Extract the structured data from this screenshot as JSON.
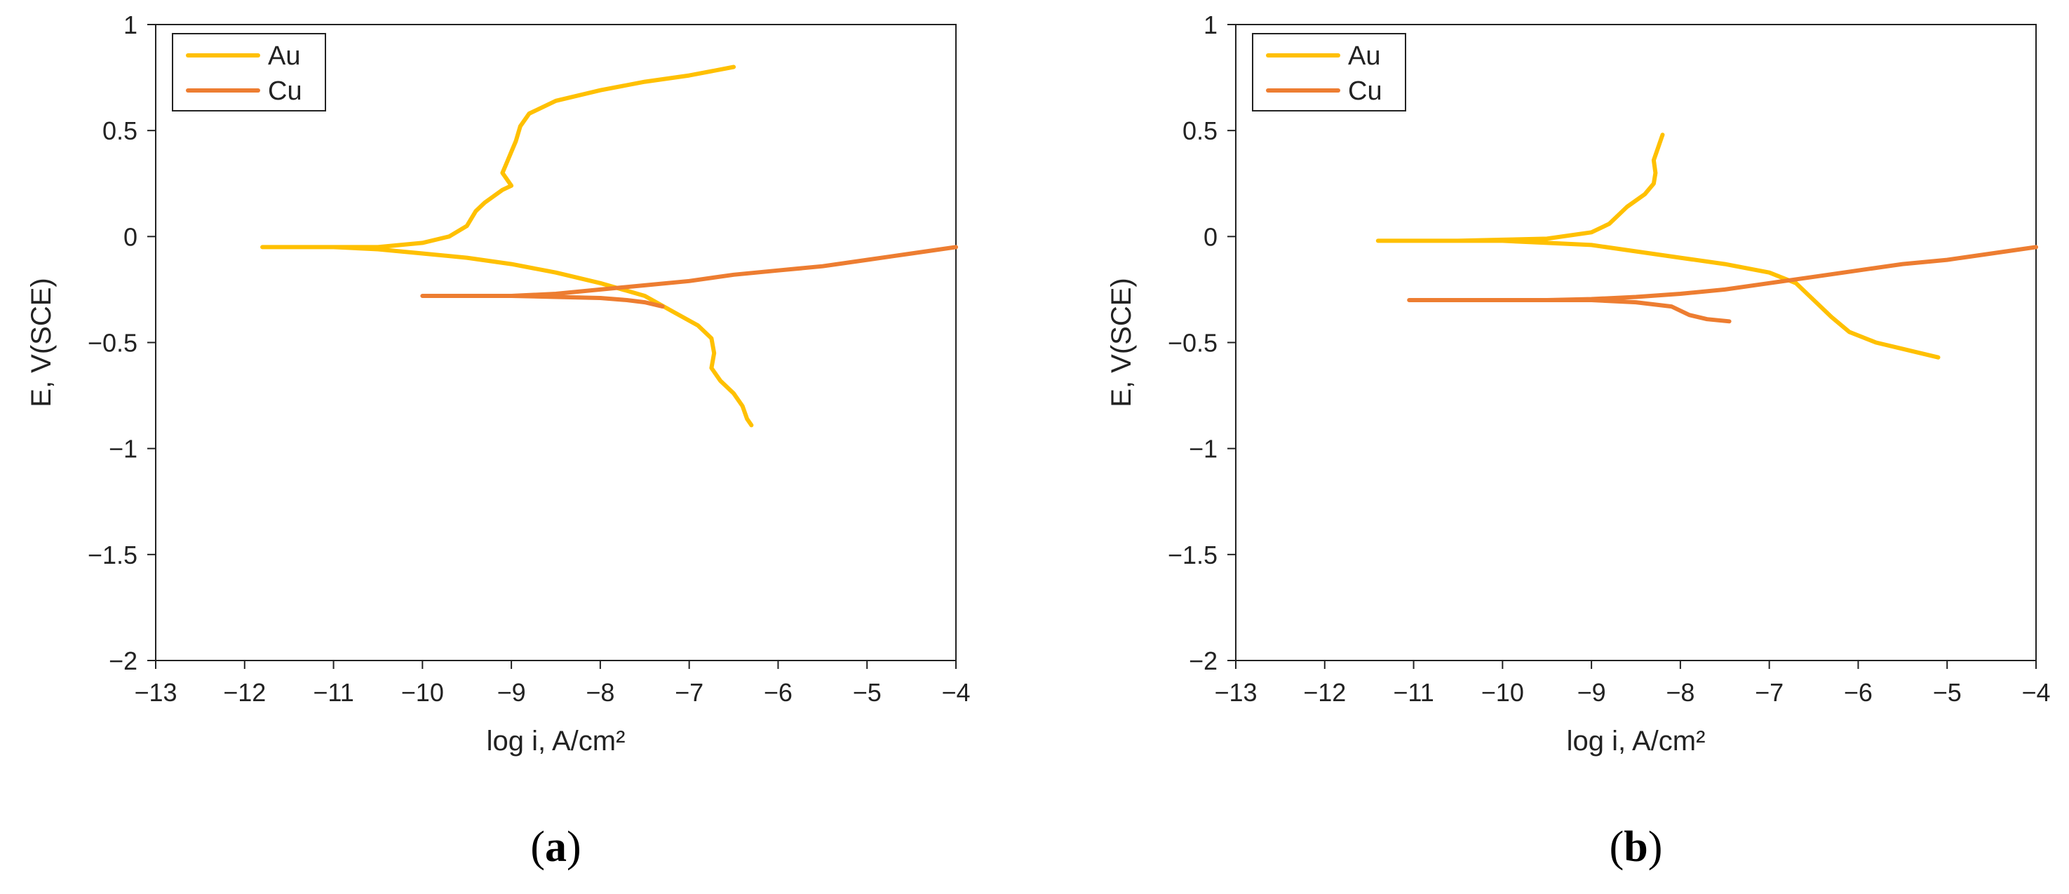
{
  "chart_data": [
    {
      "type": "line",
      "panel_label": {
        "open": "(",
        "letter": "a",
        "close": ")"
      },
      "xlabel": "log i, A/cm²",
      "ylabel": "E, V(SCE)",
      "xlim": [
        -13,
        -4
      ],
      "ylim": [
        -2,
        1
      ],
      "x_ticks": [
        "−13",
        "−12",
        "−11",
        "−10",
        "−9",
        "−8",
        "−7",
        "−6",
        "−5",
        "−4"
      ],
      "y_ticks": [
        "1",
        "0.5",
        "0",
        "−0.5",
        "−1",
        "−1.5",
        "−2"
      ],
      "grid": false,
      "legend": "top-left",
      "series": [
        {
          "name": "Au",
          "color": "#FFC000",
          "points": [
            [
              -6.5,
              0.8
            ],
            [
              -7.0,
              0.76
            ],
            [
              -7.5,
              0.73
            ],
            [
              -8.0,
              0.69
            ],
            [
              -8.5,
              0.64
            ],
            [
              -8.8,
              0.58
            ],
            [
              -8.9,
              0.52
            ],
            [
              -8.95,
              0.45
            ],
            [
              -9.0,
              0.4
            ],
            [
              -9.05,
              0.35
            ],
            [
              -9.1,
              0.3
            ],
            [
              -9.0,
              0.24
            ],
            [
              -9.1,
              0.22
            ],
            [
              -9.3,
              0.16
            ],
            [
              -9.4,
              0.12
            ],
            [
              -9.5,
              0.05
            ],
            [
              -9.7,
              0.0
            ],
            [
              -10.0,
              -0.03
            ],
            [
              -10.5,
              -0.05
            ],
            [
              -11.0,
              -0.05
            ],
            [
              -11.5,
              -0.05
            ],
            [
              -11.8,
              -0.05
            ],
            [
              -11.0,
              -0.05
            ],
            [
              -10.5,
              -0.06
            ],
            [
              -10.0,
              -0.08
            ],
            [
              -9.5,
              -0.1
            ],
            [
              -9.0,
              -0.13
            ],
            [
              -8.5,
              -0.17
            ],
            [
              -8.0,
              -0.22
            ],
            [
              -7.5,
              -0.28
            ],
            [
              -7.2,
              -0.35
            ],
            [
              -6.9,
              -0.42
            ],
            [
              -6.75,
              -0.48
            ],
            [
              -6.72,
              -0.55
            ],
            [
              -6.75,
              -0.62
            ],
            [
              -6.65,
              -0.68
            ],
            [
              -6.5,
              -0.74
            ],
            [
              -6.4,
              -0.8
            ],
            [
              -6.35,
              -0.86
            ],
            [
              -6.3,
              -0.89
            ]
          ]
        },
        {
          "name": "Cu",
          "color": "#ED7D31",
          "points": [
            [
              -4.0,
              -0.05
            ],
            [
              -4.5,
              -0.08
            ],
            [
              -5.0,
              -0.11
            ],
            [
              -5.5,
              -0.14
            ],
            [
              -6.0,
              -0.16
            ],
            [
              -6.5,
              -0.18
            ],
            [
              -7.0,
              -0.21
            ],
            [
              -7.5,
              -0.23
            ],
            [
              -8.0,
              -0.25
            ],
            [
              -8.5,
              -0.27
            ],
            [
              -9.0,
              -0.28
            ],
            [
              -9.5,
              -0.28
            ],
            [
              -10.0,
              -0.28
            ],
            [
              -9.5,
              -0.28
            ],
            [
              -9.0,
              -0.28
            ],
            [
              -8.5,
              -0.285
            ],
            [
              -8.0,
              -0.29
            ],
            [
              -7.7,
              -0.3
            ],
            [
              -7.5,
              -0.31
            ],
            [
              -7.3,
              -0.33
            ]
          ]
        }
      ]
    },
    {
      "type": "line",
      "panel_label": {
        "open": "(",
        "letter": "b",
        "close": ")"
      },
      "xlabel": "log i, A/cm²",
      "ylabel": "E, V(SCE)",
      "xlim": [
        -13,
        -4
      ],
      "ylim": [
        -2,
        1
      ],
      "x_ticks": [
        "−13",
        "−12",
        "−11",
        "−10",
        "−9",
        "−8",
        "−7",
        "−6",
        "−5",
        "−4"
      ],
      "y_ticks": [
        "1",
        "0.5",
        "0",
        "−0.5",
        "−1",
        "−1.5",
        "−2"
      ],
      "grid": false,
      "legend": "top-left",
      "series": [
        {
          "name": "Au",
          "color": "#FFC000",
          "points": [
            [
              -8.2,
              0.48
            ],
            [
              -8.25,
              0.42
            ],
            [
              -8.3,
              0.36
            ],
            [
              -8.28,
              0.3
            ],
            [
              -8.3,
              0.25
            ],
            [
              -8.4,
              0.2
            ],
            [
              -8.6,
              0.14
            ],
            [
              -8.8,
              0.06
            ],
            [
              -9.0,
              0.02
            ],
            [
              -9.5,
              -0.01
            ],
            [
              -10.0,
              -0.015
            ],
            [
              -10.5,
              -0.02
            ],
            [
              -11.0,
              -0.02
            ],
            [
              -11.4,
              -0.02
            ],
            [
              -11.0,
              -0.02
            ],
            [
              -10.5,
              -0.02
            ],
            [
              -10.0,
              -0.02
            ],
            [
              -9.5,
              -0.03
            ],
            [
              -9.0,
              -0.04
            ],
            [
              -8.5,
              -0.07
            ],
            [
              -8.0,
              -0.1
            ],
            [
              -7.5,
              -0.13
            ],
            [
              -7.0,
              -0.17
            ],
            [
              -6.7,
              -0.22
            ],
            [
              -6.5,
              -0.3
            ],
            [
              -6.3,
              -0.38
            ],
            [
              -6.1,
              -0.45
            ],
            [
              -5.8,
              -0.5
            ],
            [
              -5.5,
              -0.53
            ],
            [
              -5.1,
              -0.57
            ]
          ]
        },
        {
          "name": "Cu",
          "color": "#ED7D31",
          "points": [
            [
              -4.0,
              -0.05
            ],
            [
              -4.5,
              -0.08
            ],
            [
              -5.0,
              -0.11
            ],
            [
              -5.5,
              -0.13
            ],
            [
              -6.0,
              -0.16
            ],
            [
              -6.5,
              -0.19
            ],
            [
              -7.0,
              -0.22
            ],
            [
              -7.5,
              -0.25
            ],
            [
              -8.0,
              -0.27
            ],
            [
              -8.5,
              -0.285
            ],
            [
              -9.0,
              -0.295
            ],
            [
              -9.5,
              -0.3
            ],
            [
              -10.0,
              -0.3
            ],
            [
              -10.5,
              -0.3
            ],
            [
              -11.05,
              -0.3
            ],
            [
              -10.5,
              -0.3
            ],
            [
              -10.0,
              -0.3
            ],
            [
              -9.5,
              -0.3
            ],
            [
              -9.0,
              -0.3
            ],
            [
              -8.5,
              -0.31
            ],
            [
              -8.1,
              -0.33
            ],
            [
              -7.9,
              -0.37
            ],
            [
              -7.7,
              -0.39
            ],
            [
              -7.45,
              -0.4
            ]
          ]
        }
      ]
    }
  ]
}
